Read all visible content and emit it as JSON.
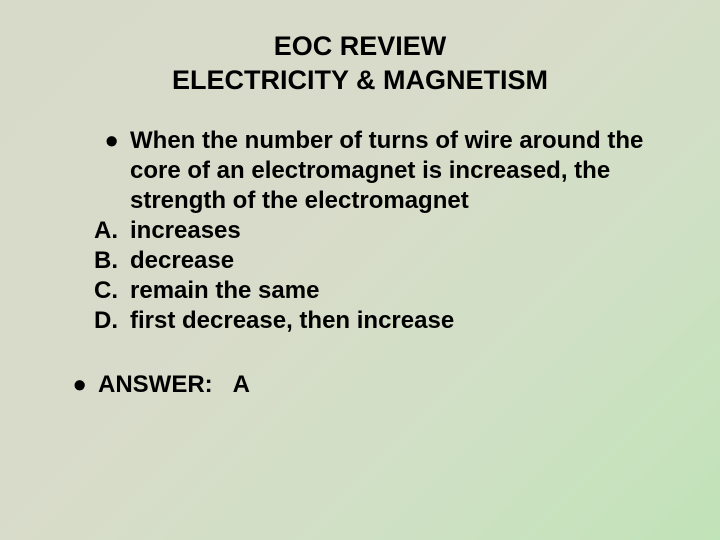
{
  "background": {
    "gradient_start": "#d8dac9",
    "gradient_end": "#c1e3b8"
  },
  "title": {
    "line1": "EOC REVIEW",
    "line2": "ELECTRICITY & MAGNETISM",
    "color": "#000000",
    "font_size": 27,
    "font_weight": "bold",
    "align": "center"
  },
  "question": {
    "bullet": "•",
    "text": "When the number of turns of wire around the core of an electromagnet is increased, the strength of the electromagnet",
    "font_size": 24,
    "font_weight": "bold",
    "color": "#000000"
  },
  "choices": [
    {
      "label": "A.",
      "text": "increases"
    },
    {
      "label": "B.",
      "text": "decrease"
    },
    {
      "label": "C.",
      "text": "remain the same"
    },
    {
      "label": "D.",
      "text": "first decrease, then increase"
    }
  ],
  "answer": {
    "bullet": "•",
    "label": "ANSWER:",
    "value": "A",
    "spacer": "   "
  },
  "typography": {
    "font_family": "Verdana",
    "body_font_size": 24,
    "bullet_font_size": 36
  }
}
